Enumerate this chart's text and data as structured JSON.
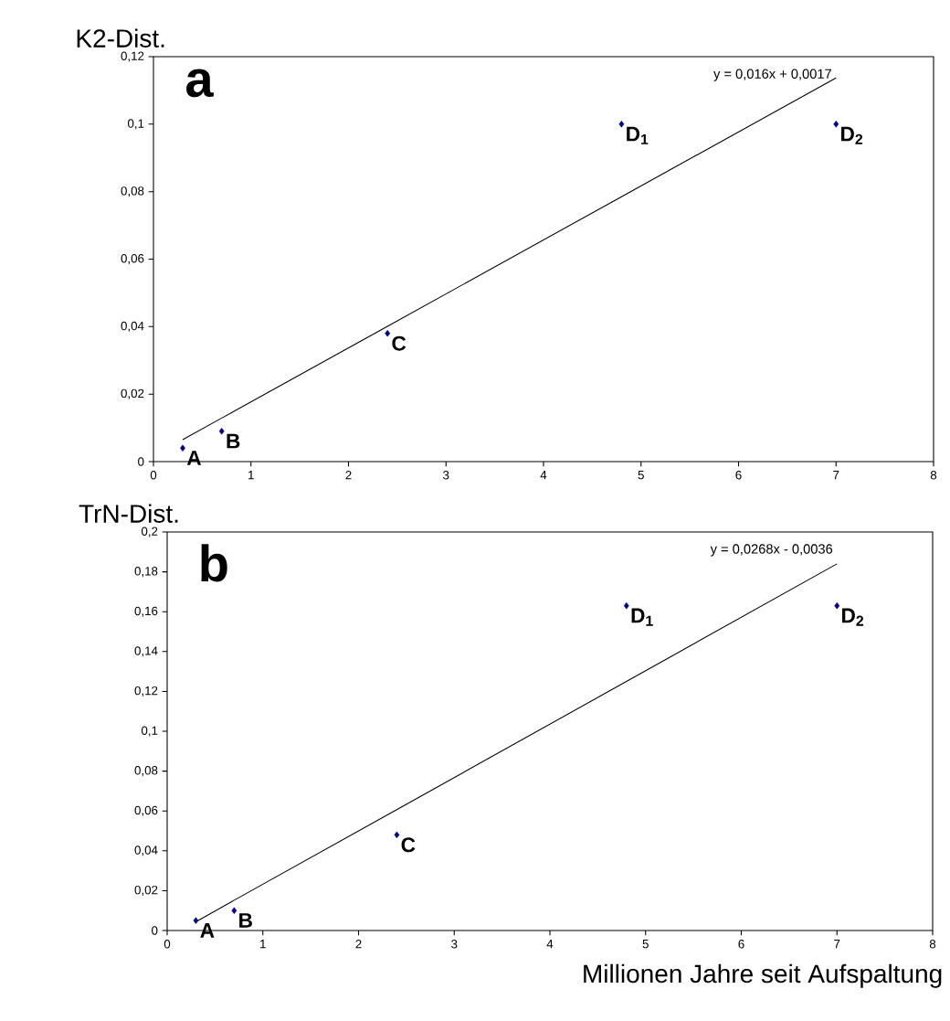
{
  "chart_data": [
    {
      "type": "scatter",
      "ylabel": "K2-Dist.",
      "x": [
        0.3,
        0.7,
        2.4,
        4.8,
        7
      ],
      "series": [
        {
          "color": "#000080",
          "marker": "diamond",
          "values": [
            0.004,
            0.009,
            0.038,
            0.1,
            0.1
          ]
        },
        {
          "type": "line",
          "color": "#000000",
          "marker": "none",
          "line_style": "solid",
          "values": [
            0.0065,
            0.0129,
            0.0401,
            0.0785,
            0.1137
          ]
        }
      ],
      "annotations": [
        "a",
        "y = 0,016x + 0,0017",
        {
          "text": "A",
          "x": 0.3,
          "y": 0.004
        },
        {
          "text": "B",
          "x": 0.7,
          "y": 0.009
        },
        {
          "text": "C",
          "x": 2.4,
          "y": 0.038
        },
        {
          "text": "D$_{1}$",
          "x": 4.8,
          "y": 0.1
        },
        {
          "text": "D$_{2}$",
          "x": 7,
          "y": 0.1
        }
      ],
      "xlim": [
        0,
        8
      ],
      "xticks": [
        0,
        1,
        2,
        3,
        4,
        5,
        6,
        7,
        8
      ],
      "ylim": [
        0,
        0.12
      ],
      "yticks": [
        0,
        {
          "value": 0.02,
          "label": "0,02"
        },
        {
          "value": 0.04,
          "label": "0,04"
        },
        {
          "value": 0.06,
          "label": "0,06"
        },
        {
          "value": 0.08,
          "label": "0,08"
        },
        {
          "value": 0.1,
          "label": "0,1"
        },
        {
          "value": 0.12,
          "label": "0,12"
        }
      ],
      "grid": false
    },
    {
      "type": "scatter",
      "ylabel": "TrN-Dist.",
      "xlabel": "Millionen Jahre seit Aufspaltung",
      "x": [
        0.3,
        0.7,
        2.4,
        4.8,
        7
      ],
      "series": [
        {
          "color": "#000080",
          "marker": "diamond",
          "values": [
            0.005,
            0.01,
            0.048,
            0.163,
            0.163
          ]
        },
        {
          "type": "line",
          "color": "#000000",
          "marker": "none",
          "line_style": "solid",
          "values": [
            0.0044,
            0.0152,
            0.0607,
            0.125,
            0.184
          ]
        }
      ],
      "annotations": [
        "b",
        "y = 0,0268x - 0,0036",
        {
          "text": "A",
          "x": 0.3,
          "y": 0.005
        },
        {
          "text": "B",
          "x": 0.7,
          "y": 0.01
        },
        {
          "text": "C",
          "x": 2.4,
          "y": 0.048
        },
        {
          "text": "D$_{1}$",
          "x": 4.8,
          "y": 0.163
        },
        {
          "text": "D$_{2}$",
          "x": 7,
          "y": 0.163
        }
      ],
      "xlim": [
        0,
        8
      ],
      "xticks": [
        0,
        1,
        2,
        3,
        4,
        5,
        6,
        7,
        8
      ],
      "ylim": [
        0,
        0.2
      ],
      "yticks": [
        0,
        {
          "value": 0.02,
          "label": "0,02"
        },
        {
          "value": 0.04,
          "label": "0,04"
        },
        {
          "value": 0.06,
          "label": "0,06"
        },
        {
          "value": 0.08,
          "label": "0,08"
        },
        {
          "value": 0.1,
          "label": "0,1"
        },
        {
          "value": 0.12,
          "label": "0,12"
        },
        {
          "value": 0.14,
          "label": "0,14"
        },
        {
          "value": 0.16,
          "label": "0,16"
        },
        {
          "value": 0.18,
          "label": "0,18"
        },
        {
          "value": 0.2,
          "label": "0,2"
        }
      ],
      "grid": false
    }
  ]
}
